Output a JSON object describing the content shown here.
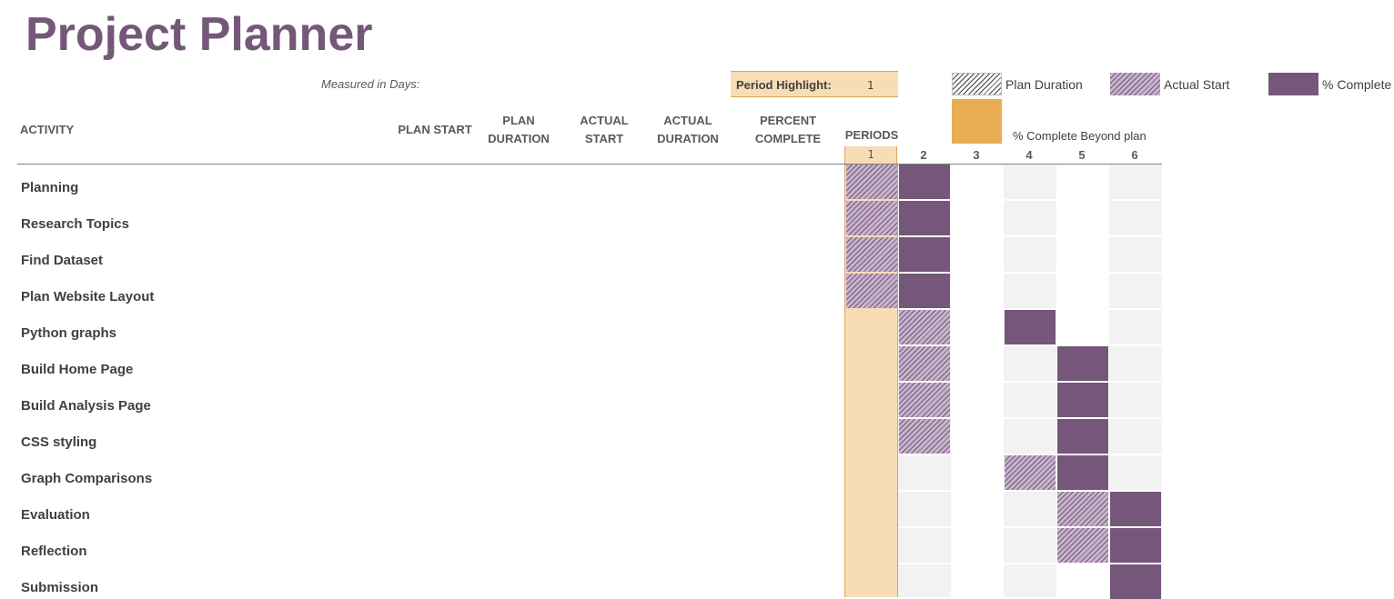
{
  "title": "Project Planner",
  "measured_label": "Measured in Days:",
  "period_highlight": {
    "label": "Period Highlight:",
    "value": "1"
  },
  "legend": {
    "plan_duration": "Plan Duration",
    "actual_start": "Actual Start",
    "percent_complete": "% Complete",
    "beyond_plan": "% Complete Beyond plan"
  },
  "colors": {
    "title": "#75577a",
    "complete": "#75577a",
    "actual_start_hatch": "#c7b3cc",
    "highlight": "#f8dcb5",
    "beyond_plan": "#e8ac52",
    "shade": "#f2f2f2"
  },
  "columns": {
    "activity": "ACTIVITY",
    "plan_start": "PLAN START",
    "plan_duration": "PLAN\nDURATION",
    "actual_start": "ACTUAL\nSTART",
    "actual_duration": "ACTUAL\nDURATION",
    "percent_complete": "PERCENT\nCOMPLETE",
    "periods": "PERIODS"
  },
  "periods": [
    "1",
    "2",
    "3",
    "4",
    "5",
    "6"
  ],
  "activities": [
    {
      "name": "Planning",
      "bars": [
        {
          "period": 1,
          "kind": "actual"
        },
        {
          "period": 2,
          "kind": "complete"
        }
      ]
    },
    {
      "name": "Research Topics",
      "bars": [
        {
          "period": 1,
          "kind": "actual"
        },
        {
          "period": 2,
          "kind": "complete"
        }
      ]
    },
    {
      "name": "Find Dataset",
      "bars": [
        {
          "period": 1,
          "kind": "actual"
        },
        {
          "period": 2,
          "kind": "complete"
        }
      ]
    },
    {
      "name": "Plan Website Layout",
      "bars": [
        {
          "period": 1,
          "kind": "actual"
        },
        {
          "period": 2,
          "kind": "complete"
        }
      ]
    },
    {
      "name": "Python graphs",
      "bars": [
        {
          "period": 2,
          "kind": "actual"
        },
        {
          "period": 4,
          "kind": "complete"
        }
      ]
    },
    {
      "name": "Build Home Page",
      "bars": [
        {
          "period": 2,
          "kind": "actual"
        },
        {
          "period": 5,
          "kind": "complete"
        }
      ]
    },
    {
      "name": "Build Analysis Page",
      "bars": [
        {
          "period": 2,
          "kind": "actual"
        },
        {
          "period": 5,
          "kind": "complete"
        }
      ]
    },
    {
      "name": "CSS styling",
      "bars": [
        {
          "period": 2,
          "kind": "actual"
        },
        {
          "period": 5,
          "kind": "complete"
        }
      ]
    },
    {
      "name": "Graph Comparisons",
      "bars": [
        {
          "period": 4,
          "kind": "actual"
        },
        {
          "period": 5,
          "kind": "complete"
        }
      ]
    },
    {
      "name": "Evaluation",
      "bars": [
        {
          "period": 5,
          "kind": "actual"
        },
        {
          "period": 6,
          "kind": "complete"
        }
      ]
    },
    {
      "name": "Reflection",
      "bars": [
        {
          "period": 5,
          "kind": "actual"
        },
        {
          "period": 6,
          "kind": "complete"
        }
      ]
    },
    {
      "name": "Submission",
      "bars": [
        {
          "period": 6,
          "kind": "complete"
        }
      ]
    }
  ]
}
